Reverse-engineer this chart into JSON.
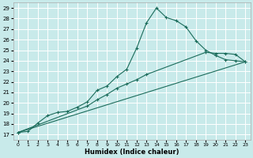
{
  "xlabel": "Humidex (Indice chaleur)",
  "bg_color": "#c8eaea",
  "grid_color": "#ffffff",
  "line_color": "#1a6b5a",
  "xlim": [
    -0.5,
    23.5
  ],
  "ylim": [
    16.5,
    29.5
  ],
  "xticks": [
    0,
    1,
    2,
    3,
    4,
    5,
    6,
    7,
    8,
    9,
    10,
    11,
    12,
    13,
    14,
    15,
    16,
    17,
    18,
    19,
    20,
    21,
    22,
    23
  ],
  "yticks": [
    17,
    18,
    19,
    20,
    21,
    22,
    23,
    24,
    25,
    26,
    27,
    28,
    29
  ],
  "line1_x": [
    0,
    1,
    2,
    3,
    4,
    5,
    6,
    7,
    8,
    9,
    10,
    11,
    12,
    13,
    14,
    15,
    16,
    17,
    18,
    19,
    20,
    21,
    22,
    23
  ],
  "line1_y": [
    17.2,
    17.3,
    18.1,
    18.8,
    19.1,
    19.2,
    19.6,
    20.1,
    21.2,
    21.6,
    22.5,
    23.2,
    25.2,
    27.6,
    29.0,
    28.1,
    27.8,
    27.2,
    25.9,
    25.0,
    24.5,
    24.1,
    24.0,
    23.9
  ],
  "line2_x": [
    0,
    7,
    8,
    9,
    10,
    11,
    12,
    13,
    19,
    20,
    21,
    22,
    23
  ],
  "line2_y": [
    17.2,
    19.7,
    20.3,
    20.8,
    21.4,
    21.8,
    22.2,
    22.7,
    24.8,
    24.7,
    24.7,
    24.6,
    23.9
  ],
  "line3_x": [
    0,
    23
  ],
  "line3_y": [
    17.2,
    23.9
  ]
}
